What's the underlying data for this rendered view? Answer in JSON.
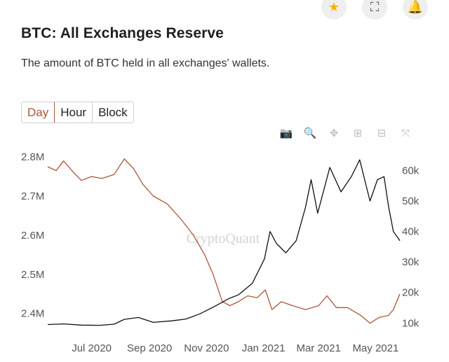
{
  "header": {
    "title": "BTC: All Exchanges Reserve",
    "subtitle": "The amount of BTC held in all exchanges' wallets."
  },
  "top_actions": [
    {
      "icon": "star-icon",
      "glyph": "★"
    },
    {
      "icon": "expand-icon",
      "glyph": "⛶"
    },
    {
      "icon": "bell-icon",
      "glyph": "🔔"
    }
  ],
  "interval_tabs": [
    {
      "label": "Day",
      "active": true
    },
    {
      "label": "Hour",
      "active": false
    },
    {
      "label": "Block",
      "active": false
    }
  ],
  "toolbar": [
    {
      "icon": "camera-icon",
      "glyph": "📷"
    },
    {
      "icon": "zoom-icon",
      "glyph": "🔍",
      "active": true
    },
    {
      "icon": "pan-icon",
      "glyph": "✥"
    },
    {
      "icon": "zoom-in-icon",
      "glyph": "⊞"
    },
    {
      "icon": "zoom-out-icon",
      "glyph": "⊟"
    },
    {
      "icon": "autoscale-icon",
      "glyph": "⤧"
    }
  ],
  "watermark": "CryptoQuant",
  "chart_data": {
    "type": "line",
    "x_ticks": [
      "Jul 2020",
      "Sep 2020",
      "Nov 2020",
      "Jan 2021",
      "Mar 2021",
      "May 2021"
    ],
    "y_left_ticks": [
      "2.8M",
      "2.7M",
      "2.6M",
      "2.5M",
      "2.4M"
    ],
    "y_right_ticks": [
      "60k",
      "50k",
      "40k",
      "30k",
      "20k",
      "10k"
    ],
    "y_left_range": [
      2360000,
      2820000
    ],
    "y_right_range": [
      8000,
      67000
    ],
    "grid": false,
    "colors": {
      "reserve": "#b0553a",
      "price": "#111111"
    },
    "series": [
      {
        "key": "reserve",
        "axis": "left",
        "points": [
          [
            "2020-05-15",
            2775000
          ],
          [
            "2020-05-24",
            2765000
          ],
          [
            "2020-06-01",
            2790000
          ],
          [
            "2020-06-10",
            2765000
          ],
          [
            "2020-06-20",
            2740000
          ],
          [
            "2020-07-01",
            2750000
          ],
          [
            "2020-07-12",
            2745000
          ],
          [
            "2020-07-25",
            2755000
          ],
          [
            "2020-08-05",
            2795000
          ],
          [
            "2020-08-15",
            2770000
          ],
          [
            "2020-08-25",
            2730000
          ],
          [
            "2020-09-05",
            2700000
          ],
          [
            "2020-09-20",
            2680000
          ],
          [
            "2020-10-05",
            2640000
          ],
          [
            "2020-10-18",
            2600000
          ],
          [
            "2020-10-30",
            2550000
          ],
          [
            "2020-11-08",
            2500000
          ],
          [
            "2020-11-18",
            2430000
          ],
          [
            "2020-11-26",
            2420000
          ],
          [
            "2020-12-05",
            2430000
          ],
          [
            "2020-12-15",
            2445000
          ],
          [
            "2020-12-25",
            2440000
          ],
          [
            "2021-01-03",
            2460000
          ],
          [
            "2021-01-10",
            2410000
          ],
          [
            "2021-01-20",
            2430000
          ],
          [
            "2021-02-01",
            2420000
          ],
          [
            "2021-02-15",
            2410000
          ],
          [
            "2021-03-01",
            2420000
          ],
          [
            "2021-03-10",
            2445000
          ],
          [
            "2021-03-20",
            2415000
          ],
          [
            "2021-04-01",
            2415000
          ],
          [
            "2021-04-15",
            2395000
          ],
          [
            "2021-04-25",
            2375000
          ],
          [
            "2021-05-05",
            2390000
          ],
          [
            "2021-05-15",
            2395000
          ],
          [
            "2021-05-20",
            2410000
          ],
          [
            "2021-05-27",
            2450000
          ]
        ]
      },
      {
        "key": "price",
        "axis": "right",
        "points": [
          [
            "2020-05-15",
            9500
          ],
          [
            "2020-06-01",
            9700
          ],
          [
            "2020-06-20",
            9300
          ],
          [
            "2020-07-10",
            9250
          ],
          [
            "2020-07-25",
            9600
          ],
          [
            "2020-08-05",
            11200
          ],
          [
            "2020-08-20",
            11800
          ],
          [
            "2020-09-05",
            10200
          ],
          [
            "2020-09-25",
            10700
          ],
          [
            "2020-10-10",
            11300
          ],
          [
            "2020-10-25",
            13000
          ],
          [
            "2020-11-10",
            15500
          ],
          [
            "2020-11-25",
            18000
          ],
          [
            "2020-12-05",
            19200
          ],
          [
            "2020-12-20",
            23000
          ],
          [
            "2021-01-02",
            31000
          ],
          [
            "2021-01-08",
            40000
          ],
          [
            "2021-01-15",
            36000
          ],
          [
            "2021-01-25",
            33000
          ],
          [
            "2021-02-05",
            37000
          ],
          [
            "2021-02-15",
            48000
          ],
          [
            "2021-02-21",
            57000
          ],
          [
            "2021-02-28",
            46000
          ],
          [
            "2021-03-13",
            61000
          ],
          [
            "2021-03-25",
            53000
          ],
          [
            "2021-04-05",
            58000
          ],
          [
            "2021-04-14",
            63500
          ],
          [
            "2021-04-25",
            50000
          ],
          [
            "2021-05-03",
            57000
          ],
          [
            "2021-05-10",
            58000
          ],
          [
            "2021-05-15",
            48000
          ],
          [
            "2021-05-20",
            40000
          ],
          [
            "2021-05-27",
            37000
          ]
        ]
      }
    ]
  }
}
